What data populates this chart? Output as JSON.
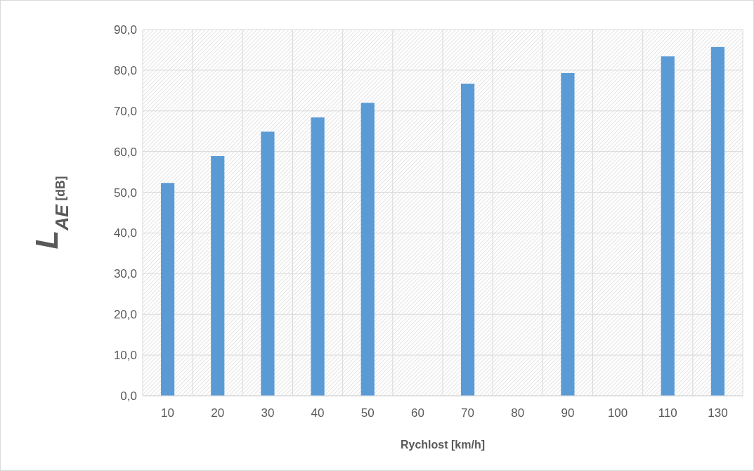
{
  "chart_data": {
    "type": "bar",
    "xlabel": "Rychlost [km/h]",
    "ylabel": "L$_{AE}$ $_{[dB]}$",
    "categories": [
      "10",
      "20",
      "30",
      "40",
      "50",
      "60",
      "70",
      "80",
      "90",
      "100",
      "110",
      "130"
    ],
    "values": [
      52.3,
      58.9,
      64.9,
      68.4,
      72.0,
      null,
      76.7,
      null,
      79.3,
      null,
      83.4,
      85.7
    ],
    "color": "#5b9bd5",
    "ylim": [
      0,
      90
    ],
    "yticks": [
      {
        "value": 0,
        "label": "0,0"
      },
      {
        "value": 10,
        "label": "10,0"
      },
      {
        "value": 20,
        "label": "20,0"
      },
      {
        "value": 30,
        "label": "30,0"
      },
      {
        "value": 40,
        "label": "40,0"
      },
      {
        "value": 50,
        "label": "50,0"
      },
      {
        "value": 60,
        "label": "60,0"
      },
      {
        "value": 70,
        "label": "70,0"
      },
      {
        "value": 80,
        "label": "80,0"
      },
      {
        "value": 90,
        "label": "90,0"
      }
    ],
    "grid": true
  }
}
